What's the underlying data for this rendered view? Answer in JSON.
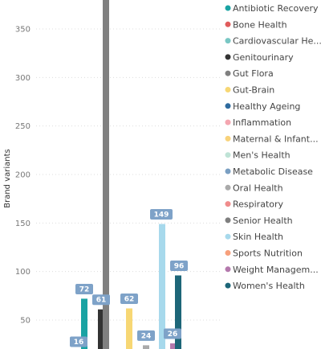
{
  "chart_data": {
    "type": "bar",
    "ylabel": "Brand variants",
    "y_ticks": [
      50,
      100,
      150,
      200,
      250,
      300,
      350
    ],
    "ylim": [
      25,
      360
    ],
    "grid": true,
    "legend_position": "right",
    "series": [
      {
        "name": "Antibiotic Recovery",
        "color": "#1aa3a3",
        "value": 72,
        "label": "72"
      },
      {
        "name": "Bone Health",
        "color": "#e05c5c",
        "value": 16,
        "label": "16"
      },
      {
        "name": "Cardiovascular He...",
        "color": "#79c7c4",
        "value": null,
        "label": ""
      },
      {
        "name": "Genitourinary",
        "color": "#333333",
        "value": 61,
        "label": "61"
      },
      {
        "name": "Gut Flora",
        "color": "#808080",
        "value": 400,
        "label": ""
      },
      {
        "name": "Gut-Brain",
        "color": "#f7d774",
        "value": 62,
        "label": "62"
      },
      {
        "name": "Healthy Ageing",
        "color": "#2e6b9e",
        "value": null,
        "label": ""
      },
      {
        "name": "Inflammation",
        "color": "#f4a6b0",
        "value": null,
        "label": ""
      },
      {
        "name": "Maternal & Infant...",
        "color": "#f8d27a",
        "value": null,
        "label": ""
      },
      {
        "name": "Men's Health",
        "color": "#bfe3d6",
        "value": null,
        "label": ""
      },
      {
        "name": "Metabolic Disease",
        "color": "#7a9fc2",
        "value": null,
        "label": ""
      },
      {
        "name": "Oral Health",
        "color": "#aaaaaa",
        "value": 24,
        "label": "24"
      },
      {
        "name": "Respiratory",
        "color": "#f08c8c",
        "value": null,
        "label": ""
      },
      {
        "name": "Senior Health",
        "color": "#7f7f7f",
        "value": null,
        "label": ""
      },
      {
        "name": "Skin Health",
        "color": "#a7d9ec",
        "value": 149,
        "label": "149"
      },
      {
        "name": "Sports Nutrition",
        "color": "#f7a07c",
        "value": null,
        "label": ""
      },
      {
        "name": "Weight Managem...",
        "color": "#b479ad",
        "value": 26,
        "label": "26"
      },
      {
        "name": "Women's Health",
        "color": "#1d6678",
        "value": 96,
        "label": "96"
      }
    ]
  }
}
